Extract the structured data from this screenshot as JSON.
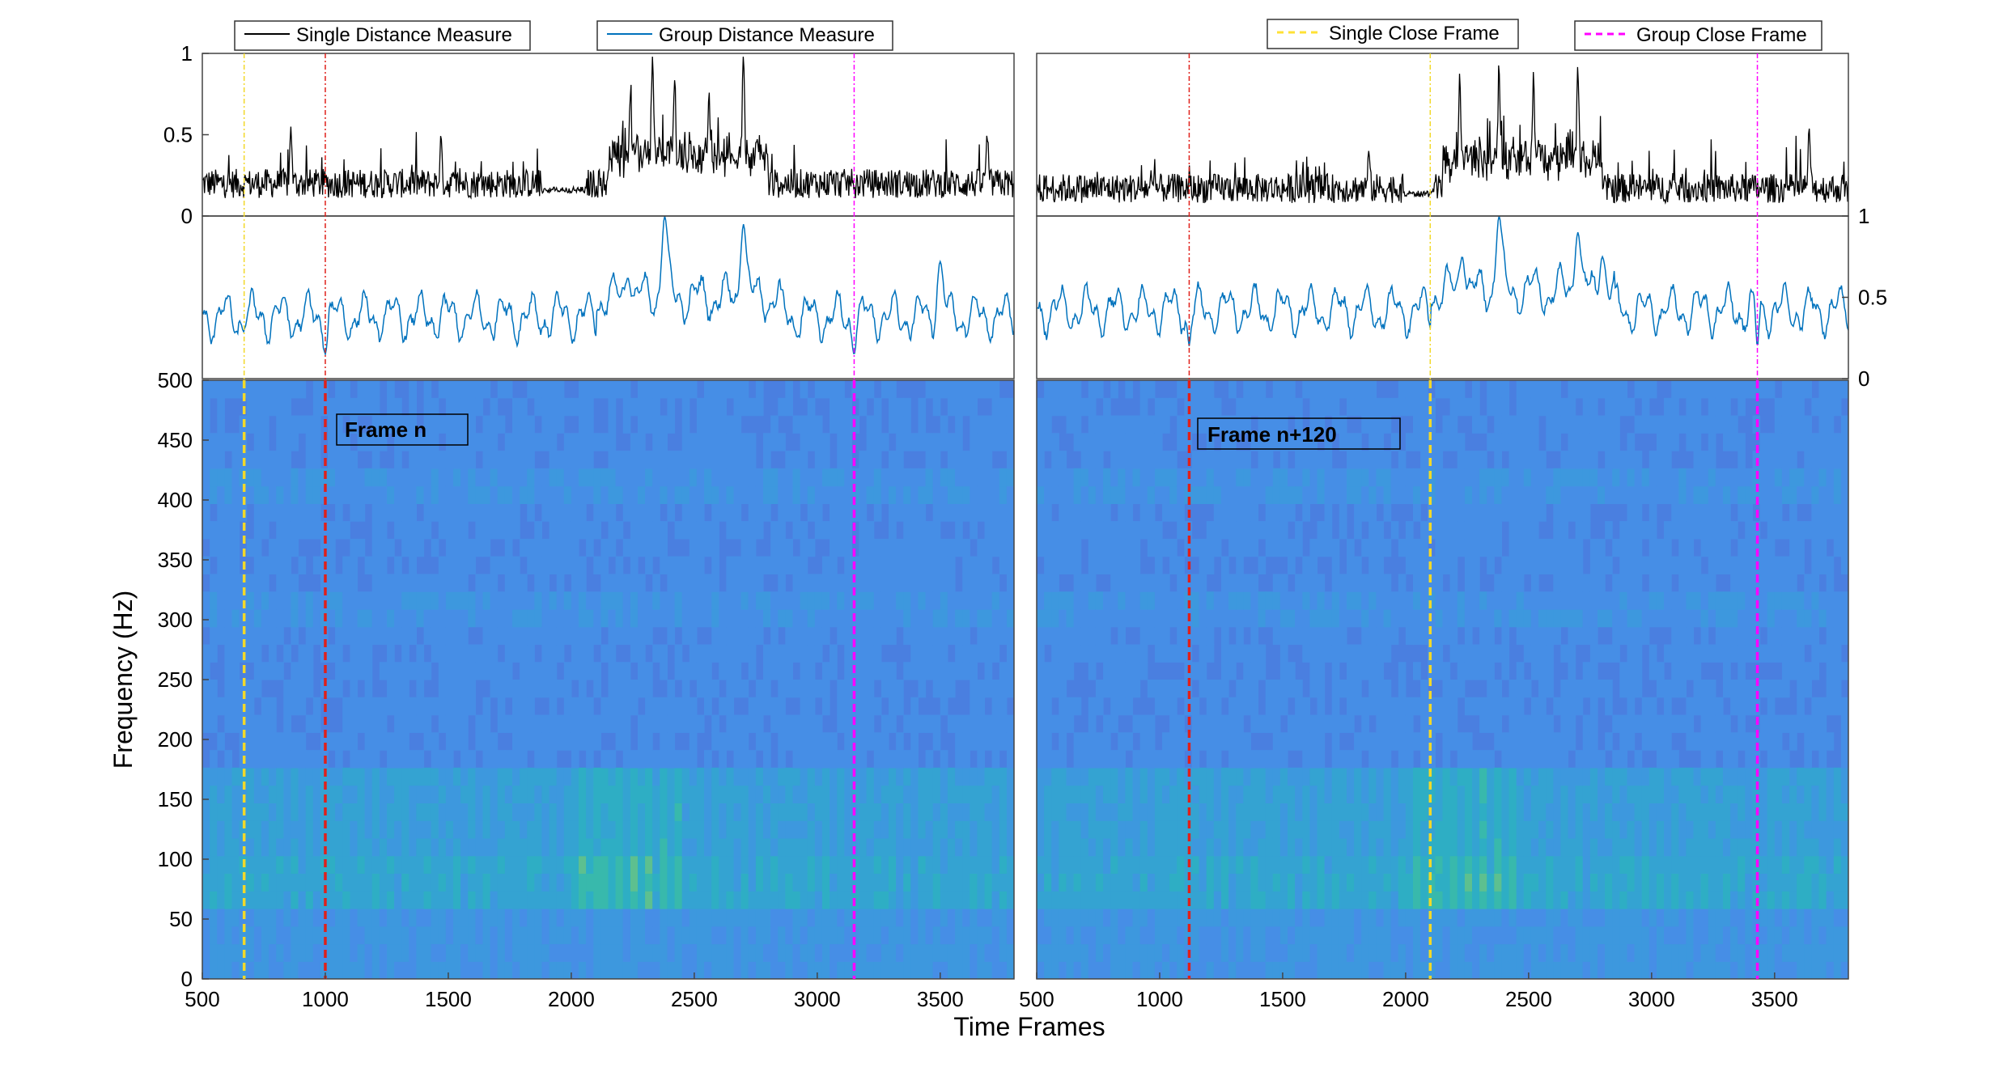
{
  "chart_data": {
    "type": "composite",
    "x_range": [
      500,
      3800
    ],
    "xlabel": "Time Frames",
    "ylabel_spectrogram": "Frequency (Hz)",
    "legend_entries": [
      {
        "label": "Single Distance Measure",
        "color": "#000000",
        "style": "solid"
      },
      {
        "label": "Group Distance Measure",
        "color": "#0072BD",
        "style": "solid"
      },
      {
        "label": "Single Close Frame",
        "color": "#FFE135",
        "style": "dashed"
      },
      {
        "label": "Group Close Frame",
        "color": "#FF00FF",
        "style": "dashed"
      }
    ],
    "panels": [
      {
        "name": "left",
        "annotation": "Frame n",
        "current_frame": 1000,
        "single_close_frame": 670,
        "group_close_frame": 3150,
        "single_distance": {
          "ylim": [
            0,
            1
          ],
          "yticks": [
            0,
            0.5,
            1
          ],
          "ytick_labels": [
            "0",
            "0.5",
            "1"
          ],
          "baseline": 0.2,
          "peaks": [
            [
              860,
              0.6
            ],
            [
              1470,
              0.55
            ],
            [
              2240,
              0.65
            ],
            [
              2330,
              0.9
            ],
            [
              2420,
              0.72
            ],
            [
              2560,
              0.62
            ],
            [
              2700,
              0.92
            ],
            [
              3690,
              0.55
            ]
          ],
          "quiet_segments": [
            [
              1880,
              2060
            ]
          ]
        },
        "group_distance": {
          "ylim": [
            0,
            1
          ],
          "baseline": 0.38,
          "peaks": [
            [
              2230,
              0.62
            ],
            [
              2380,
              1.0
            ],
            [
              2700,
              0.95
            ],
            [
              3500,
              0.72
            ]
          ],
          "dips": [
            [
              1000,
              0.15
            ],
            [
              3150,
              0.15
            ]
          ]
        },
        "spectrogram": {
          "ylim": [
            0,
            500
          ],
          "yticks": [
            0,
            50,
            100,
            150,
            200,
            250,
            300,
            350,
            400,
            450,
            500
          ],
          "ytick_labels": [
            "0",
            "50",
            "100",
            "150",
            "200",
            "250",
            "300",
            "350",
            "400",
            "450",
            "500"
          ],
          "xticks": [
            500,
            1000,
            1500,
            2000,
            2500,
            3000,
            3500
          ],
          "xtick_labels": [
            "500",
            "1000",
            "1500",
            "2000",
            "2500",
            "3000",
            "3500"
          ],
          "colormap": "parula",
          "hot_bands_hz": [
            [
              60,
              100
            ],
            [
              100,
              150
            ]
          ]
        }
      },
      {
        "name": "right",
        "annotation": "Frame n+120",
        "current_frame": 1120,
        "single_close_frame": 2100,
        "group_close_frame": 3430,
        "single_distance": {
          "ylim": [
            0,
            1
          ],
          "baseline": 0.17,
          "peaks": [
            [
              1850,
              0.45
            ],
            [
              2220,
              0.72
            ],
            [
              2380,
              0.82
            ],
            [
              2520,
              0.75
            ],
            [
              2700,
              0.8
            ],
            [
              3640,
              0.6
            ]
          ],
          "quiet_segments": [
            [
              1990,
              2110
            ]
          ]
        },
        "group_distance": {
          "ylim": [
            0,
            1
          ],
          "yticks": [
            0,
            0.5,
            1
          ],
          "ytick_labels": [
            "0",
            "0.5",
            "1"
          ],
          "baseline": 0.42,
          "peaks": [
            [
              2230,
              0.75
            ],
            [
              2380,
              1.0
            ],
            [
              2700,
              0.9
            ],
            [
              2800,
              0.75
            ]
          ],
          "dips": [
            [
              1120,
              0.2
            ],
            [
              3430,
              0.2
            ]
          ]
        },
        "spectrogram": {
          "ylim": [
            0,
            500
          ],
          "xticks": [
            500,
            1000,
            1500,
            2000,
            2500,
            3000,
            3500
          ],
          "xtick_labels": [
            "500",
            "1000",
            "1500",
            "2000",
            "2500",
            "3000",
            "3500"
          ],
          "colormap": "parula",
          "hot_bands_hz": [
            [
              60,
              100
            ],
            [
              100,
              150
            ]
          ]
        }
      }
    ]
  }
}
